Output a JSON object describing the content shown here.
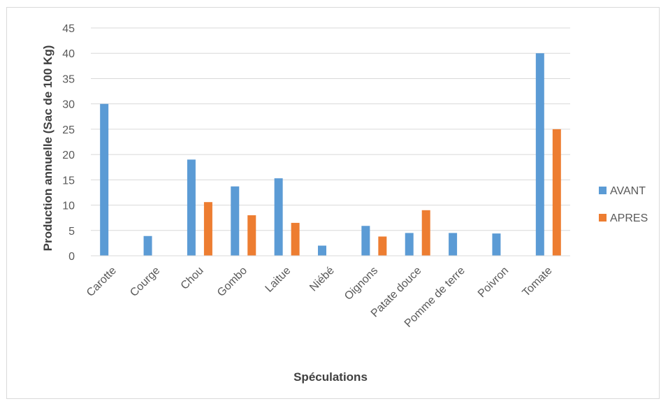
{
  "chart_data": {
    "type": "bar",
    "title": "",
    "xlabel": "Spéculations",
    "ylabel": "Production annuelle (Sac de 100 Kg)",
    "categories": [
      "Carotte",
      "Courge",
      "Chou",
      "Gombo",
      "Laitue",
      "Niébé",
      "Oignons",
      "Patate douce",
      "Pomme de terre",
      "Poivron",
      "Tomate"
    ],
    "series": [
      {
        "name": "AVANT",
        "color": "#5b9bd5",
        "values": [
          30,
          3.9,
          19,
          13.7,
          15.3,
          2,
          5.9,
          4.5,
          4.5,
          4.4,
          40
        ]
      },
      {
        "name": "APRES",
        "color": "#ed7d31",
        "values": [
          0,
          0,
          10.6,
          8,
          6.5,
          0,
          3.8,
          9,
          0,
          0,
          25
        ]
      }
    ],
    "ylim": [
      0,
      45
    ],
    "yticks": [
      0,
      5,
      10,
      15,
      20,
      25,
      30,
      35,
      40,
      45
    ],
    "grid": true,
    "legend_position": "right"
  }
}
